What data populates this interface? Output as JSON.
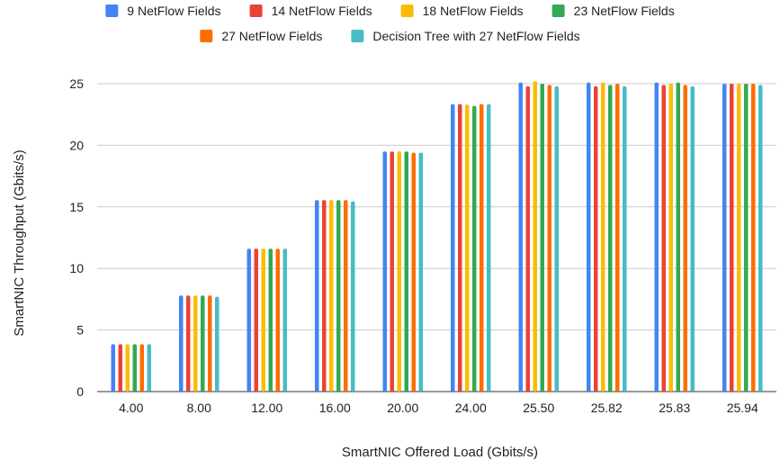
{
  "chart_data": {
    "type": "bar",
    "title": "",
    "xlabel": "SmartNIC Offered Load (Gbits/s)",
    "ylabel": "SmartNIC Throughput (Gbits/s)",
    "ylim": [
      0,
      25
    ],
    "yticks": [
      "0",
      "5",
      "10",
      "15",
      "20",
      "25"
    ],
    "grid": true,
    "legend_position": "top",
    "categories": [
      "4.00",
      "8.00",
      "12.00",
      "16.00",
      "20.00",
      "24.00",
      "25.50",
      "25.82",
      "25.83",
      "25.94"
    ],
    "series": [
      {
        "name": "9 NetFlow Fields",
        "color": "#4285F4",
        "values": [
          3.85,
          7.8,
          11.6,
          15.55,
          19.5,
          23.35,
          25.1,
          25.1,
          25.1,
          25.0
        ]
      },
      {
        "name": "14 NetFlow Fields",
        "color": "#EA4335",
        "values": [
          3.85,
          7.8,
          11.6,
          15.55,
          19.5,
          23.35,
          24.8,
          24.8,
          24.9,
          25.0
        ]
      },
      {
        "name": "18 NetFlow Fields",
        "color": "#FBBC04",
        "values": [
          3.85,
          7.8,
          11.6,
          15.55,
          19.5,
          23.3,
          25.2,
          25.1,
          25.0,
          25.0
        ]
      },
      {
        "name": "23 NetFlow Fields",
        "color": "#34A853",
        "values": [
          3.85,
          7.8,
          11.6,
          15.55,
          19.5,
          23.2,
          25.0,
          24.9,
          25.1,
          25.0
        ]
      },
      {
        "name": "27 NetFlow Fields",
        "color": "#FF6D01",
        "values": [
          3.85,
          7.8,
          11.6,
          15.55,
          19.4,
          23.35,
          24.9,
          25.0,
          24.9,
          25.0
        ]
      },
      {
        "name": "Decision Tree with 27 NetFlow Fields",
        "color": "#46BDC6",
        "values": [
          3.85,
          7.7,
          11.6,
          15.45,
          19.4,
          23.35,
          24.8,
          24.8,
          24.8,
          24.9
        ]
      }
    ]
  }
}
